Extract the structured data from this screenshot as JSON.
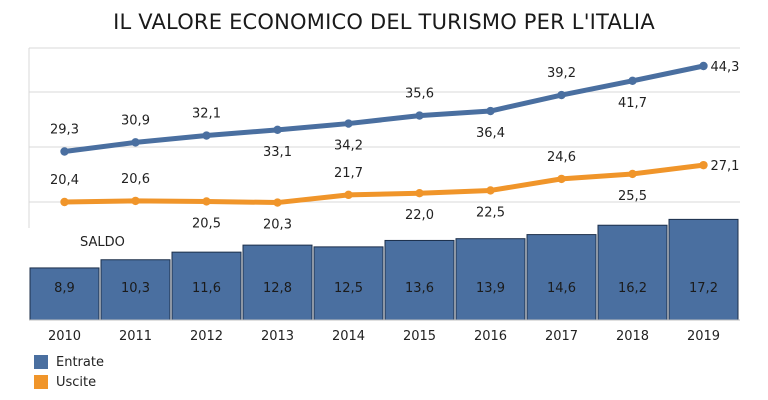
{
  "chart_data": {
    "type": "line+bar",
    "title": "IL VALORE ECONOMICO DEL TURISMO PER L'ITALIA",
    "categories": [
      "2010",
      "2011",
      "2012",
      "2013",
      "2014",
      "2015",
      "2016",
      "2017",
      "2018",
      "2019"
    ],
    "series": [
      {
        "name": "Entrate",
        "type": "line",
        "color": "#4a6fa0",
        "values": [
          29.3,
          30.9,
          32.1,
          33.1,
          34.2,
          35.6,
          36.4,
          39.2,
          41.7,
          44.3
        ],
        "labels": [
          "29,3",
          "30,9",
          "32,1",
          "33,1",
          "34,2",
          "35,6",
          "36,4",
          "39,2",
          "41,7",
          "44,3"
        ]
      },
      {
        "name": "Uscite",
        "type": "line",
        "color": "#f0952a",
        "values": [
          20.4,
          20.6,
          20.5,
          20.3,
          21.7,
          22.0,
          22.5,
          24.6,
          25.5,
          27.1
        ],
        "labels": [
          "20,4",
          "20,6",
          "20,5",
          "20,3",
          "21,7",
          "22,0",
          "22,5",
          "24,6",
          "25,5",
          "27,1"
        ]
      },
      {
        "name": "SALDO",
        "type": "bar",
        "color": "#4a6fa0",
        "values": [
          8.9,
          10.3,
          11.6,
          12.8,
          12.5,
          13.6,
          13.9,
          14.6,
          16.2,
          17.2
        ],
        "labels": [
          "8,9",
          "10,3",
          "11,6",
          "12,8",
          "12,5",
          "13,6",
          "13,9",
          "14,6",
          "16,2",
          "17,2"
        ]
      }
    ],
    "grid": true,
    "legend": "bottom-left"
  }
}
